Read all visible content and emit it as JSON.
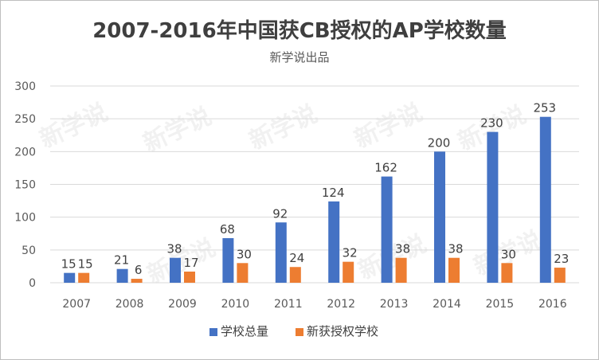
{
  "chart_data": {
    "type": "bar",
    "title": "2007-2016年中国获CB授权的AP学校数量",
    "subtitle": "新学说出品",
    "watermark": "新学说",
    "categories": [
      "2007",
      "2008",
      "2009",
      "2010",
      "2011",
      "2012",
      "2013",
      "2014",
      "2015",
      "2016"
    ],
    "series": [
      {
        "name": "学校总量",
        "color": "#4472c4",
        "values": [
          15,
          21,
          38,
          68,
          92,
          124,
          162,
          200,
          230,
          253
        ]
      },
      {
        "name": "新获授权学校",
        "color": "#ed7d31",
        "values": [
          15,
          6,
          17,
          30,
          24,
          32,
          38,
          38,
          30,
          23
        ]
      }
    ],
    "ylim": [
      0,
      300
    ],
    "yticks": [
      0,
      50,
      100,
      150,
      200,
      250,
      300
    ],
    "grid": true,
    "legend_position": "bottom",
    "data_labels": true,
    "gridline_color": "#d9d9d9"
  }
}
